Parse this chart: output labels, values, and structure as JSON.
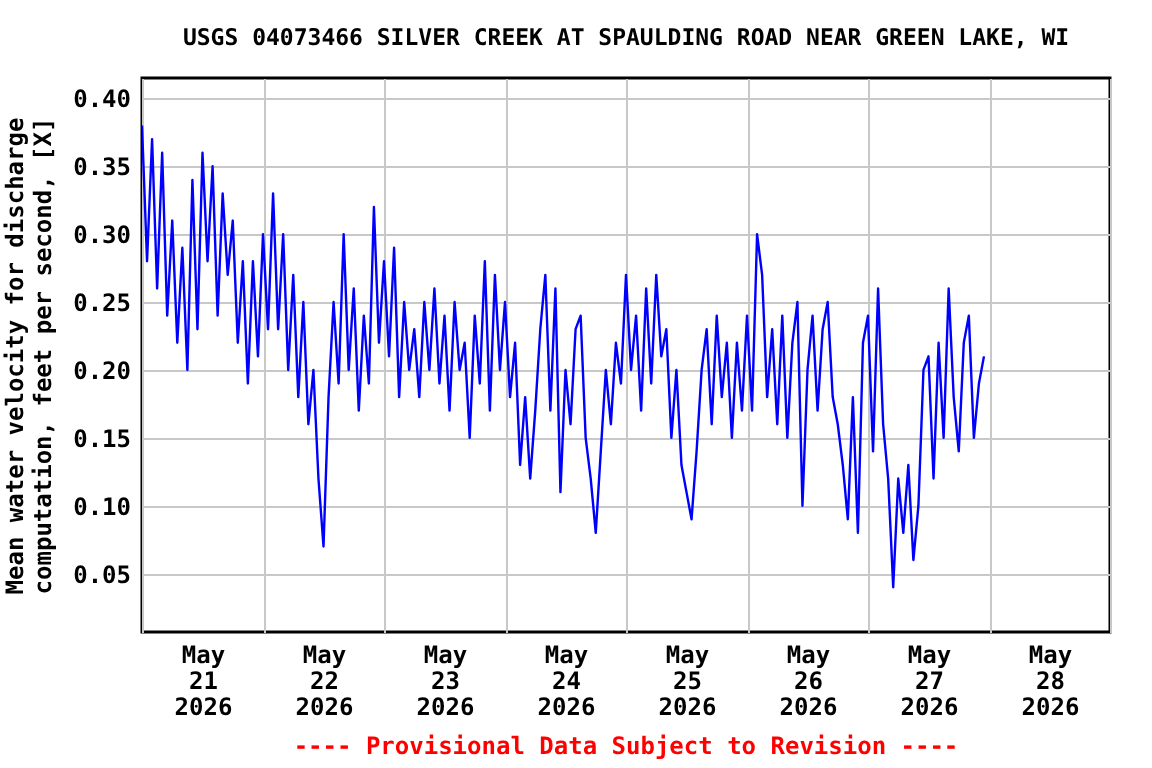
{
  "chart_data": {
    "type": "line",
    "title": "USGS 04073466 SILVER CREEK AT SPAULDING ROAD NEAR GREEN LAKE, WI",
    "ylabel": "Mean water velocity for discharge\ncomputation, feet per second, [X]",
    "annotations": [
      "---- Provisional Data Subject to Revision ----"
    ],
    "xlim": [
      "2026-05-21T00:00",
      "2026-05-29T00:00"
    ],
    "xticks": [
      {
        "value": "2026-05-21T00:00",
        "label": null
      },
      {
        "value": "2026-05-21T12:00",
        "label": "May\n21\n2026"
      },
      {
        "value": "2026-05-22T00:00",
        "label": null
      },
      {
        "value": "2026-05-22T12:00",
        "label": "May\n22\n2026"
      },
      {
        "value": "2026-05-23T00:00",
        "label": null
      },
      {
        "value": "2026-05-23T12:00",
        "label": "May\n23\n2026"
      },
      {
        "value": "2026-05-24T00:00",
        "label": null
      },
      {
        "value": "2026-05-24T12:00",
        "label": "May\n24\n2026"
      },
      {
        "value": "2026-05-25T00:00",
        "label": null
      },
      {
        "value": "2026-05-25T12:00",
        "label": "May\n25\n2026"
      },
      {
        "value": "2026-05-26T00:00",
        "label": null
      },
      {
        "value": "2026-05-26T12:00",
        "label": "May\n26\n2026"
      },
      {
        "value": "2026-05-27T00:00",
        "label": null
      },
      {
        "value": "2026-05-27T12:00",
        "label": "May\n27\n2026"
      },
      {
        "value": "2026-05-28T00:00",
        "label": null
      },
      {
        "value": "2026-05-28T12:00",
        "label": "May\n28\n2026"
      },
      {
        "value": "2026-05-29T00:00",
        "label": null
      }
    ],
    "ylim": [
      0.007,
      0.415
    ],
    "yticks": [
      {
        "value": 0.05,
        "label": "0.05"
      },
      {
        "value": 0.1,
        "label": "0.10"
      },
      {
        "value": 0.15,
        "label": "0.15"
      },
      {
        "value": 0.2,
        "label": "0.20"
      },
      {
        "value": 0.25,
        "label": "0.25"
      },
      {
        "value": 0.3,
        "label": "0.30"
      },
      {
        "value": 0.35,
        "label": "0.35"
      },
      {
        "value": 0.4,
        "label": "0.40"
      }
    ],
    "grid": true,
    "line_style": "solid",
    "series": [
      {
        "color": "#0000ff",
        "x": [
          "2026-05-21T00:00",
          "2026-05-21T01:00",
          "2026-05-21T02:00",
          "2026-05-21T03:00",
          "2026-05-21T04:00",
          "2026-05-21T05:00",
          "2026-05-21T06:00",
          "2026-05-21T07:00",
          "2026-05-21T08:00",
          "2026-05-21T09:00",
          "2026-05-21T10:00",
          "2026-05-21T11:00",
          "2026-05-21T12:00",
          "2026-05-21T13:00",
          "2026-05-21T14:00",
          "2026-05-21T15:00",
          "2026-05-21T16:00",
          "2026-05-21T17:00",
          "2026-05-21T18:00",
          "2026-05-21T19:00",
          "2026-05-21T20:00",
          "2026-05-21T21:00",
          "2026-05-21T22:00",
          "2026-05-21T23:00",
          "2026-05-22T00:00",
          "2026-05-22T01:00",
          "2026-05-22T02:00",
          "2026-05-22T03:00",
          "2026-05-22T04:00",
          "2026-05-22T05:00",
          "2026-05-22T06:00",
          "2026-05-22T07:00",
          "2026-05-22T08:00",
          "2026-05-22T09:00",
          "2026-05-22T10:00",
          "2026-05-22T11:00",
          "2026-05-22T12:00",
          "2026-05-22T13:00",
          "2026-05-22T14:00",
          "2026-05-22T15:00",
          "2026-05-22T16:00",
          "2026-05-22T17:00",
          "2026-05-22T18:00",
          "2026-05-22T19:00",
          "2026-05-22T20:00",
          "2026-05-22T21:00",
          "2026-05-22T22:00",
          "2026-05-22T23:00",
          "2026-05-23T00:00",
          "2026-05-23T01:00",
          "2026-05-23T02:00",
          "2026-05-23T03:00",
          "2026-05-23T04:00",
          "2026-05-23T05:00",
          "2026-05-23T06:00",
          "2026-05-23T07:00",
          "2026-05-23T08:00",
          "2026-05-23T09:00",
          "2026-05-23T10:00",
          "2026-05-23T11:00",
          "2026-05-23T12:00",
          "2026-05-23T13:00",
          "2026-05-23T14:00",
          "2026-05-23T15:00",
          "2026-05-23T16:00",
          "2026-05-23T17:00",
          "2026-05-23T18:00",
          "2026-05-23T19:00",
          "2026-05-23T20:00",
          "2026-05-23T21:00",
          "2026-05-23T22:00",
          "2026-05-23T23:00",
          "2026-05-24T00:00",
          "2026-05-24T01:00",
          "2026-05-24T02:00",
          "2026-05-24T03:00",
          "2026-05-24T04:00",
          "2026-05-24T05:00",
          "2026-05-24T06:00",
          "2026-05-24T07:00",
          "2026-05-24T08:00",
          "2026-05-24T09:00",
          "2026-05-24T10:00",
          "2026-05-24T11:00",
          "2026-05-24T12:00",
          "2026-05-24T13:00",
          "2026-05-24T14:00",
          "2026-05-24T15:00",
          "2026-05-24T16:00",
          "2026-05-24T17:00",
          "2026-05-24T18:00",
          "2026-05-24T19:00",
          "2026-05-24T20:00",
          "2026-05-24T21:00",
          "2026-05-24T22:00",
          "2026-05-24T23:00",
          "2026-05-25T00:00",
          "2026-05-25T01:00",
          "2026-05-25T02:00",
          "2026-05-25T03:00",
          "2026-05-25T04:00",
          "2026-05-25T05:00",
          "2026-05-25T06:00",
          "2026-05-25T07:00",
          "2026-05-25T08:00",
          "2026-05-25T09:00",
          "2026-05-25T10:00",
          "2026-05-25T11:00",
          "2026-05-25T12:00",
          "2026-05-25T13:00",
          "2026-05-25T14:00",
          "2026-05-25T15:00",
          "2026-05-25T16:00",
          "2026-05-25T17:00",
          "2026-05-25T18:00",
          "2026-05-25T19:00",
          "2026-05-25T20:00",
          "2026-05-25T21:00",
          "2026-05-25T22:00",
          "2026-05-25T23:00",
          "2026-05-26T00:00",
          "2026-05-26T01:00",
          "2026-05-26T02:00",
          "2026-05-26T03:00",
          "2026-05-26T04:00",
          "2026-05-26T05:00",
          "2026-05-26T06:00",
          "2026-05-26T07:00",
          "2026-05-26T08:00",
          "2026-05-26T09:00",
          "2026-05-26T10:00",
          "2026-05-26T11:00",
          "2026-05-26T12:00",
          "2026-05-26T13:00",
          "2026-05-26T14:00",
          "2026-05-26T15:00",
          "2026-05-26T16:00",
          "2026-05-26T17:00",
          "2026-05-26T18:00",
          "2026-05-26T19:00",
          "2026-05-26T20:00",
          "2026-05-26T21:00",
          "2026-05-26T22:00",
          "2026-05-26T23:00",
          "2026-05-27T00:00",
          "2026-05-27T01:00",
          "2026-05-27T02:00",
          "2026-05-27T03:00",
          "2026-05-27T04:00",
          "2026-05-27T05:00",
          "2026-05-27T06:00",
          "2026-05-27T07:00",
          "2026-05-27T08:00",
          "2026-05-27T09:00",
          "2026-05-27T10:00",
          "2026-05-27T11:00",
          "2026-05-27T12:00",
          "2026-05-27T13:00",
          "2026-05-27T14:00",
          "2026-05-27T15:00",
          "2026-05-27T16:00",
          "2026-05-27T17:00",
          "2026-05-27T18:00",
          "2026-05-27T19:00",
          "2026-05-27T20:00",
          "2026-05-27T21:00",
          "2026-05-27T22:00",
          "2026-05-27T23:00"
        ],
        "values": [
          0.38,
          0.28,
          0.37,
          0.26,
          0.36,
          0.24,
          0.31,
          0.22,
          0.29,
          0.2,
          0.34,
          0.23,
          0.36,
          0.28,
          0.35,
          0.24,
          0.33,
          0.27,
          0.31,
          0.22,
          0.28,
          0.19,
          0.28,
          0.21,
          0.3,
          0.23,
          0.33,
          0.23,
          0.3,
          0.2,
          0.27,
          0.18,
          0.25,
          0.16,
          0.2,
          0.12,
          0.07,
          0.18,
          0.25,
          0.19,
          0.3,
          0.2,
          0.26,
          0.17,
          0.24,
          0.19,
          0.32,
          0.22,
          0.28,
          0.21,
          0.29,
          0.18,
          0.25,
          0.2,
          0.23,
          0.18,
          0.25,
          0.2,
          0.26,
          0.19,
          0.24,
          0.17,
          0.25,
          0.2,
          0.22,
          0.15,
          0.24,
          0.19,
          0.28,
          0.17,
          0.27,
          0.2,
          0.25,
          0.18,
          0.22,
          0.13,
          0.18,
          0.12,
          0.17,
          0.23,
          0.27,
          0.17,
          0.26,
          0.11,
          0.2,
          0.16,
          0.23,
          0.24,
          0.15,
          0.12,
          0.08,
          0.14,
          0.2,
          0.16,
          0.22,
          0.19,
          0.27,
          0.2,
          0.24,
          0.17,
          0.26,
          0.19,
          0.27,
          0.21,
          0.23,
          0.15,
          0.2,
          0.13,
          0.11,
          0.09,
          0.14,
          0.2,
          0.23,
          0.16,
          0.24,
          0.18,
          0.22,
          0.15,
          0.22,
          0.17,
          0.24,
          0.17,
          0.3,
          0.27,
          0.18,
          0.23,
          0.16,
          0.24,
          0.15,
          0.22,
          0.25,
          0.1,
          0.2,
          0.24,
          0.17,
          0.23,
          0.25,
          0.18,
          0.16,
          0.13,
          0.09,
          0.18,
          0.08,
          0.22,
          0.24,
          0.14,
          0.26,
          0.16,
          0.12,
          0.04,
          0.12,
          0.08,
          0.13,
          0.06,
          0.1,
          0.2,
          0.21,
          0.12,
          0.22,
          0.15,
          0.26,
          0.18,
          0.14,
          0.22,
          0.24,
          0.15,
          0.19,
          0.21
        ]
      }
    ]
  }
}
